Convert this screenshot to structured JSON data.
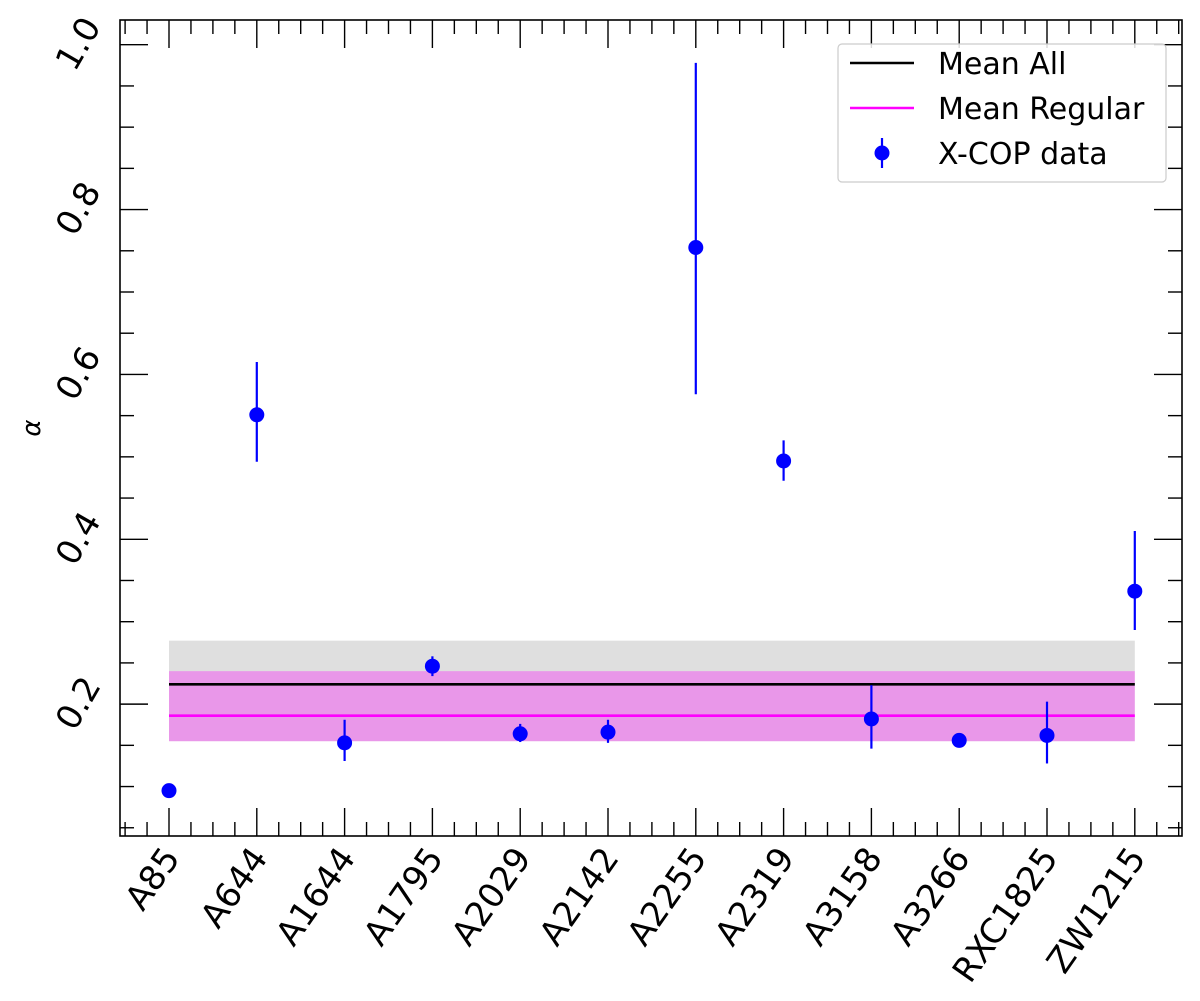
{
  "chart_data": {
    "type": "scatter",
    "title": "",
    "xlabel": "",
    "ylabel": "α",
    "categories": [
      "A85",
      "A644",
      "A1644",
      "A1795",
      "A2029",
      "A2142",
      "A2255",
      "A2319",
      "A3158",
      "A3266",
      "RXC1825",
      "ZW1215"
    ],
    "ylim": [
      0.04,
      1.03
    ],
    "yticks": [
      0.2,
      0.4,
      0.6,
      0.8,
      1.0
    ],
    "ytick_labels": [
      "0.2",
      "0.4",
      "0.6",
      "0.8",
      "1.0"
    ],
    "grid": false,
    "legend_position": "top-right",
    "series": [
      {
        "name": "X-COP data",
        "kind": "errorbar",
        "color": "#0000ff",
        "values": [
          0.095,
          0.551,
          0.153,
          0.246,
          0.164,
          0.166,
          0.754,
          0.495,
          0.182,
          0.156,
          0.162,
          0.337
        ],
        "err_low": [
          0.0,
          0.057,
          0.022,
          0.012,
          0.01,
          0.013,
          0.178,
          0.024,
          0.036,
          0.008,
          0.034,
          0.047
        ],
        "err_high": [
          0.0,
          0.064,
          0.028,
          0.012,
          0.012,
          0.015,
          0.224,
          0.025,
          0.041,
          0.008,
          0.041,
          0.073
        ]
      },
      {
        "name": "Mean All",
        "kind": "hline",
        "color": "#000000",
        "value": 0.224,
        "band": [
          0.155,
          0.277
        ],
        "band_color": "#dcdcdc"
      },
      {
        "name": "Mean Regular",
        "kind": "hline",
        "color": "#ff00ff",
        "value": 0.186,
        "band": [
          0.155,
          0.24
        ],
        "band_color": "#ff00ff"
      }
    ],
    "legend": [
      "Mean All",
      "Mean Regular",
      "X-COP data"
    ]
  }
}
